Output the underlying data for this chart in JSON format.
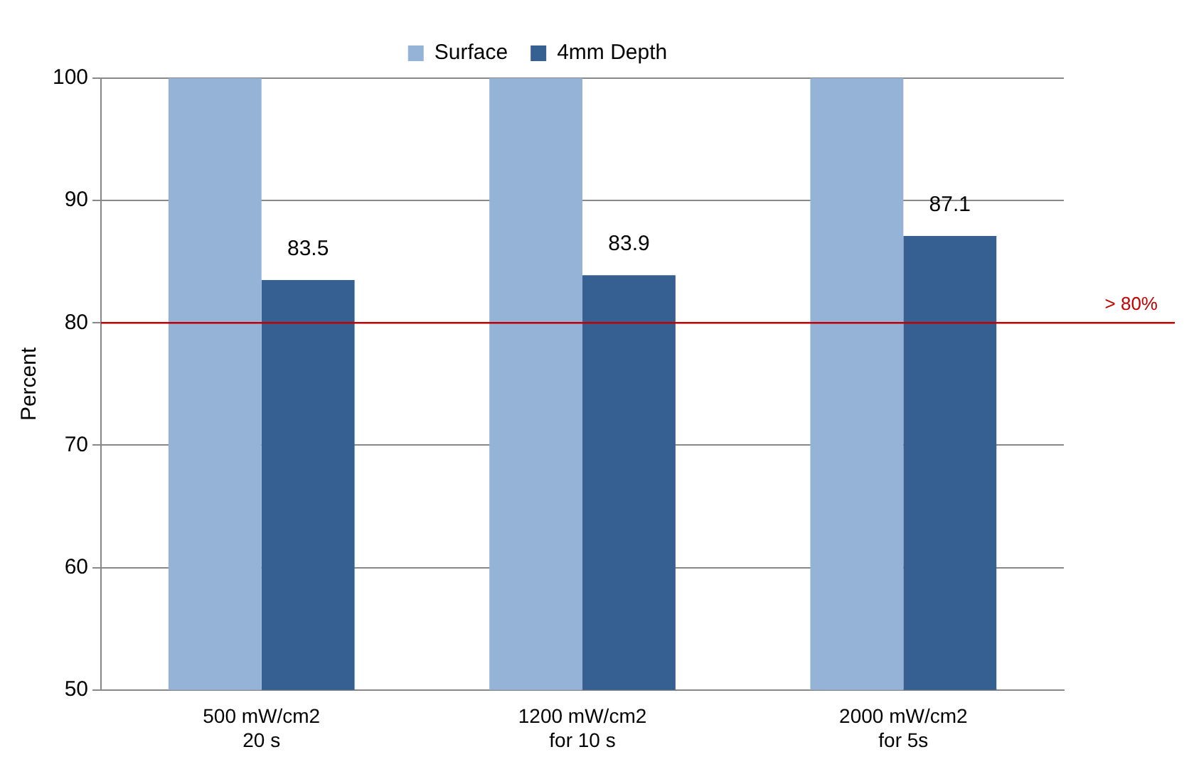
{
  "chart_data": {
    "type": "bar",
    "ylabel": "Percent",
    "categories": [
      "500 mW/cm2\n20 s",
      "1200 mW/cm2\nfor 10 s",
      "2000 mW/cm2\nfor 5s"
    ],
    "series": [
      {
        "name": "Surface",
        "color": "#95b3d7",
        "values": [
          100,
          100,
          100
        ],
        "value_labels": [
          null,
          null,
          null
        ]
      },
      {
        "name": "4mm Depth",
        "color": "#376092",
        "values": [
          83.5,
          83.9,
          87.1
        ],
        "value_labels": [
          "83.5",
          "83.9",
          "87.1"
        ]
      }
    ],
    "ylim": [
      50,
      100
    ],
    "yticks": [
      50,
      60,
      70,
      80,
      90,
      100
    ],
    "grid": "y",
    "legend": "top",
    "ref_lines": [
      {
        "axis": "y",
        "value": 80,
        "label": "> 80%",
        "color": "#c00000"
      }
    ]
  }
}
